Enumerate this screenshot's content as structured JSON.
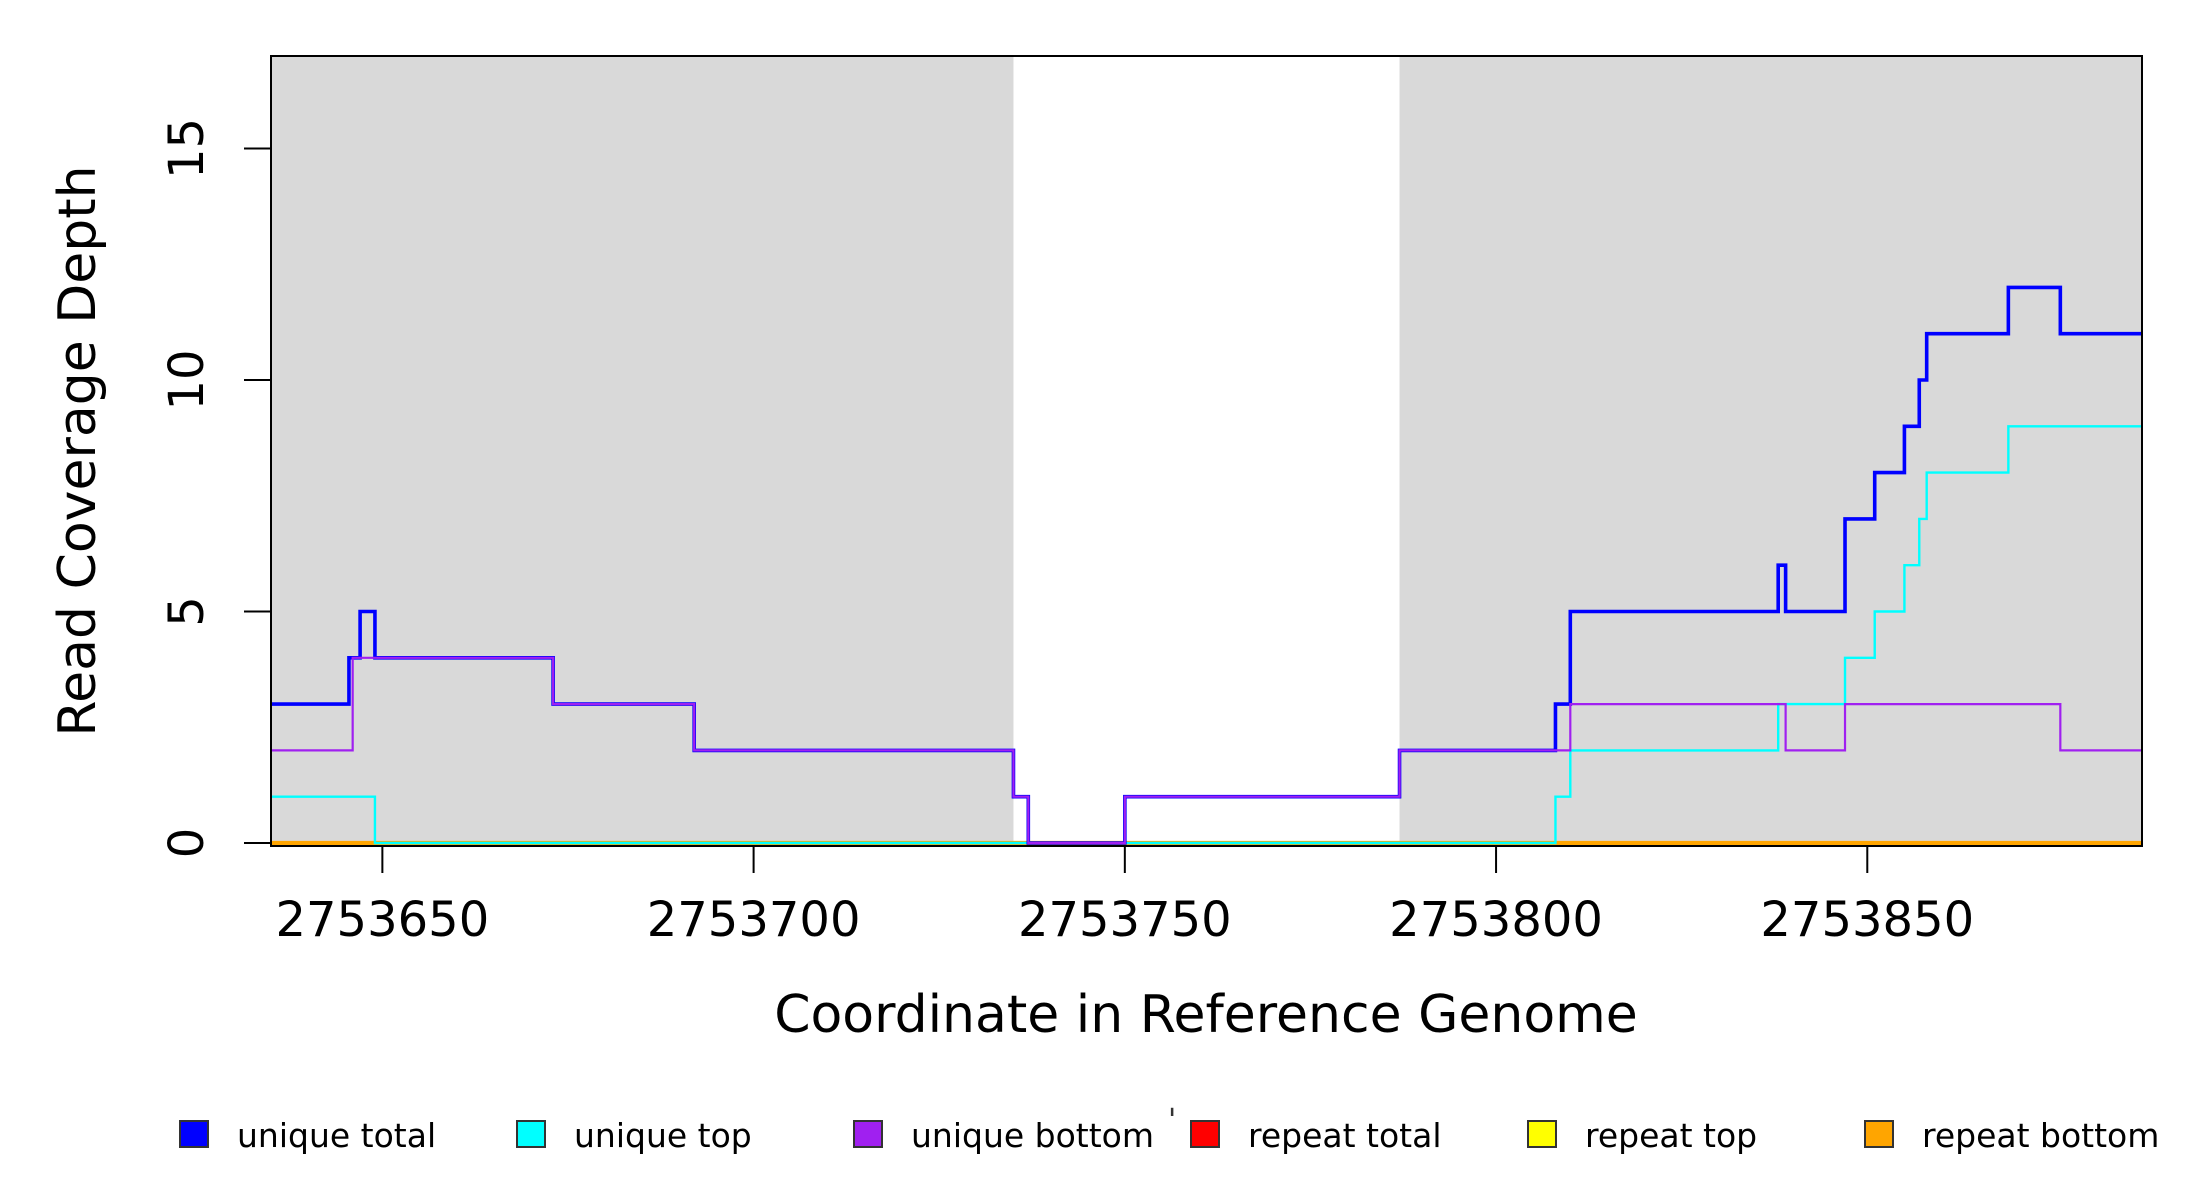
{
  "chart_data": {
    "type": "line",
    "subtype": "step",
    "title": "",
    "xlabel": "Coordinate in Reference Genome",
    "ylabel": "Read Coverage Depth",
    "xlim": [
      2753635,
      2753887
    ],
    "ylim": [
      0,
      17
    ],
    "grid": false,
    "x_ticks": [
      2753650,
      2753700,
      2753750,
      2753800,
      2753850
    ],
    "x_tick_labels": [
      "2753650",
      "2753700",
      "2753750",
      "2753800",
      "2753850"
    ],
    "y_ticks": [
      0,
      5,
      10,
      15
    ],
    "y_tick_labels": [
      "0",
      "5",
      "10",
      "15"
    ],
    "shade_color": "#D9D9D9",
    "shaded_x_regions": [
      [
        2753635,
        2753735
      ],
      [
        2753787,
        2753887
      ]
    ],
    "draw_order": [
      "repeat total",
      "repeat top",
      "repeat bottom",
      "unique top",
      "unique total",
      "unique bottom"
    ],
    "series": [
      {
        "name": "unique total",
        "color": "#0000FF",
        "line_width": 3.6,
        "steps": [
          [
            3,
            2753635,
            2753645.5
          ],
          [
            4,
            2753645.5,
            2753647
          ],
          [
            5,
            2753647,
            2753649
          ],
          [
            4,
            2753649,
            2753673
          ],
          [
            3,
            2753673,
            2753692
          ],
          [
            2,
            2753692,
            2753735
          ],
          [
            1,
            2753735,
            2753737
          ],
          [
            0,
            2753737,
            2753750
          ],
          [
            1,
            2753750,
            2753787
          ],
          [
            2,
            2753787,
            2753808
          ],
          [
            3,
            2753808,
            2753810
          ],
          [
            5,
            2753810,
            2753838
          ],
          [
            6,
            2753838,
            2753839
          ],
          [
            5,
            2753839,
            2753847
          ],
          [
            7,
            2753847,
            2753851
          ],
          [
            8,
            2753851,
            2753855
          ],
          [
            9,
            2753855,
            2753857
          ],
          [
            10,
            2753857,
            2753858
          ],
          [
            11,
            2753858,
            2753869
          ],
          [
            12,
            2753869,
            2753876
          ],
          [
            11,
            2753876,
            2753887
          ]
        ]
      },
      {
        "name": "unique top",
        "color": "#00FFFF",
        "line_width": 2.4,
        "steps": [
          [
            1,
            2753635,
            2753649
          ],
          [
            0,
            2753649,
            2753808
          ],
          [
            1,
            2753808,
            2753810
          ],
          [
            2,
            2753810,
            2753838
          ],
          [
            3,
            2753838,
            2753847
          ],
          [
            4,
            2753847,
            2753851
          ],
          [
            5,
            2753851,
            2753855
          ],
          [
            6,
            2753855,
            2753857
          ],
          [
            7,
            2753857,
            2753858
          ],
          [
            8,
            2753858,
            2753869
          ],
          [
            9,
            2753869,
            2753887
          ]
        ]
      },
      {
        "name": "unique bottom",
        "color": "#A020F0",
        "line_width": 2.2,
        "steps": [
          [
            2,
            2753635,
            2753646
          ],
          [
            4,
            2753646,
            2753673
          ],
          [
            3,
            2753673,
            2753692
          ],
          [
            2,
            2753692,
            2753735
          ],
          [
            1,
            2753735,
            2753737
          ],
          [
            0,
            2753737,
            2753750
          ],
          [
            1,
            2753750,
            2753787
          ],
          [
            2,
            2753787,
            2753810
          ],
          [
            3,
            2753810,
            2753839
          ],
          [
            2,
            2753839,
            2753847
          ],
          [
            3,
            2753847,
            2753876
          ],
          [
            2,
            2753876,
            2753887
          ]
        ]
      },
      {
        "name": "repeat total",
        "color": "#FF0000",
        "line_width": 3.0,
        "steps": [
          [
            0,
            2753635,
            2753887
          ]
        ]
      },
      {
        "name": "repeat top",
        "color": "#FFFF00",
        "line_width": 3.0,
        "steps": [
          [
            0,
            2753635,
            2753887
          ]
        ]
      },
      {
        "name": "repeat bottom",
        "color": "#FFA500",
        "line_width": 4.2,
        "steps": [
          [
            0,
            2753635,
            2753887
          ]
        ]
      }
    ],
    "legend": {
      "position": "bottom",
      "entries": [
        {
          "label": "unique total",
          "color": "#0000FF"
        },
        {
          "label": "unique top",
          "color": "#00FFFF"
        },
        {
          "label": "unique bottom",
          "color": "#A020F0"
        },
        {
          "label": "repeat total",
          "color": "#FF0000"
        },
        {
          "label": "repeat top",
          "color": "#FFFF00"
        },
        {
          "label": "repeat bottom",
          "color": "#FFA500"
        }
      ]
    },
    "stray_mark": "'"
  }
}
